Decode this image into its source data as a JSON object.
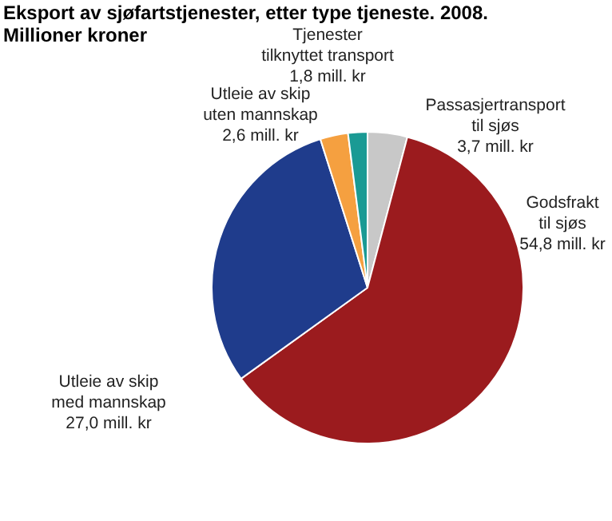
{
  "chart_data": {
    "type": "pie",
    "title": "Eksport av sjøfartstjenester, etter type tjeneste. 2008. Millioner kroner",
    "categories": [
      "Passasjertransport til sjøs",
      "Godsfrakt til sjøs",
      "Utleie av skip med mannskap",
      "Utleie av skip uten mannskap",
      "Tjenester tilknyttet transport"
    ],
    "values": [
      3.7,
      54.8,
      27.0,
      2.6,
      1.8
    ],
    "value_labels": [
      "3,7 mill. kr",
      "54,8 mill. kr",
      "27,0 mill. kr",
      "2,6 mill. kr",
      "1,8 mill. kr"
    ],
    "colors": [
      "#c8c8c8",
      "#9b1b1e",
      "#1f3c8c",
      "#f5a040",
      "#1a9a94"
    ],
    "legend": false
  }
}
